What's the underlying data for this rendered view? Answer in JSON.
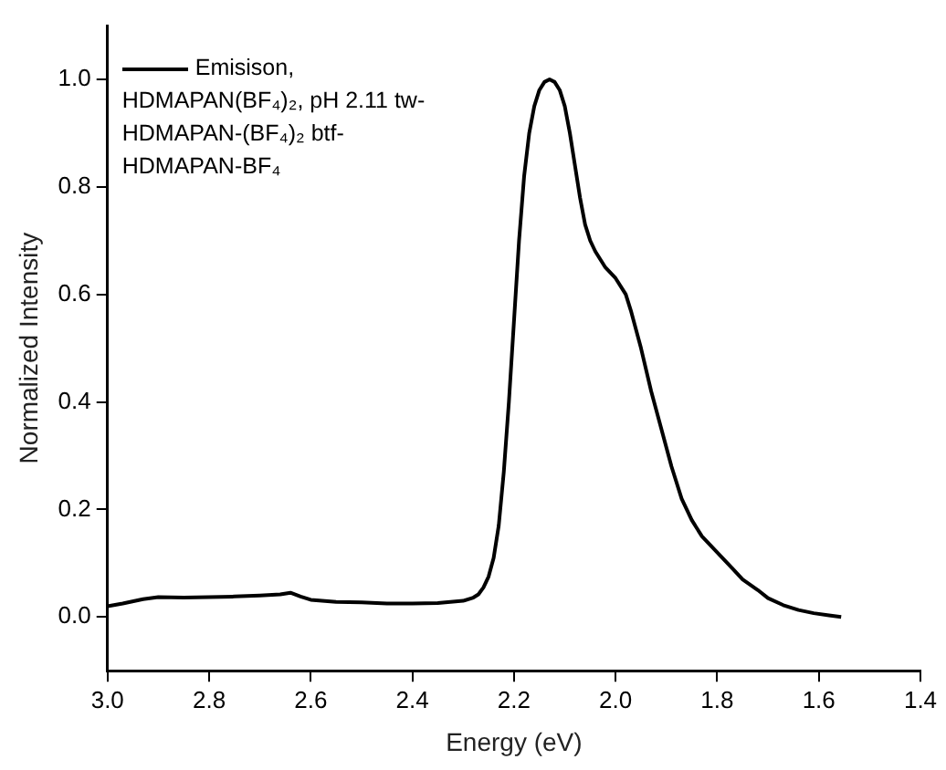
{
  "chart_data": {
    "type": "line",
    "xlabel": "Energy (eV)",
    "ylabel": "Normalized Intensity",
    "xlim": [
      3.0,
      1.4
    ],
    "ylim": [
      -0.1,
      1.1
    ],
    "xticks": [
      {
        "value": 3.0,
        "label": "3.0"
      },
      {
        "value": 2.8,
        "label": "2.8"
      },
      {
        "value": 2.6,
        "label": "2.6"
      },
      {
        "value": 2.4,
        "label": "2.4"
      },
      {
        "value": 2.2,
        "label": "2.2"
      },
      {
        "value": 2.0,
        "label": "2.0"
      },
      {
        "value": 1.8,
        "label": "1.8"
      },
      {
        "value": 1.6,
        "label": "1.6"
      },
      {
        "value": 1.4,
        "label": "1.4"
      }
    ],
    "yticks": [
      {
        "value": 0,
        "label": "0.0"
      },
      {
        "value": 0.2,
        "label": "0.2"
      },
      {
        "value": 0.4,
        "label": "0.4"
      },
      {
        "value": 0.6,
        "label": "0.6"
      },
      {
        "value": 0.8,
        "label": "0.8"
      },
      {
        "value": 1.0,
        "label": "1.0"
      }
    ],
    "grid": false,
    "legend": "top left",
    "marker": "none",
    "line_style": "solid",
    "series": [
      {
        "name": "Emisison, HDMAPAN(BF₄)₂, pH 2.11 tw-HDMAPAN-(BF₄)₂ btf-HDMAPAN-BF₄",
        "color": "#000000",
        "x": [
          3.0,
          2.97,
          2.93,
          2.9,
          2.85,
          2.8,
          2.75,
          2.7,
          2.66,
          2.64,
          2.62,
          2.6,
          2.55,
          2.5,
          2.45,
          2.4,
          2.35,
          2.3,
          2.28,
          2.27,
          2.26,
          2.25,
          2.24,
          2.23,
          2.22,
          2.21,
          2.2,
          2.19,
          2.18,
          2.17,
          2.16,
          2.15,
          2.14,
          2.13,
          2.12,
          2.11,
          2.1,
          2.09,
          2.08,
          2.07,
          2.06,
          2.05,
          2.04,
          2.02,
          2.0,
          1.98,
          1.97,
          1.95,
          1.93,
          1.91,
          1.89,
          1.87,
          1.85,
          1.83,
          1.81,
          1.79,
          1.77,
          1.75,
          1.72,
          1.7,
          1.67,
          1.64,
          1.61,
          1.58,
          1.556
        ],
        "values": [
          0.02,
          0.025,
          0.033,
          0.037,
          0.036,
          0.037,
          0.038,
          0.04,
          0.042,
          0.045,
          0.038,
          0.032,
          0.028,
          0.027,
          0.025,
          0.025,
          0.026,
          0.03,
          0.036,
          0.042,
          0.055,
          0.075,
          0.11,
          0.17,
          0.27,
          0.4,
          0.55,
          0.7,
          0.82,
          0.9,
          0.95,
          0.98,
          0.995,
          1.0,
          0.995,
          0.98,
          0.95,
          0.9,
          0.84,
          0.78,
          0.73,
          0.7,
          0.68,
          0.65,
          0.63,
          0.6,
          0.57,
          0.5,
          0.42,
          0.35,
          0.28,
          0.22,
          0.18,
          0.15,
          0.13,
          0.11,
          0.09,
          0.07,
          0.05,
          0.035,
          0.022,
          0.013,
          0.007,
          0.003,
          0.0
        ]
      }
    ]
  }
}
